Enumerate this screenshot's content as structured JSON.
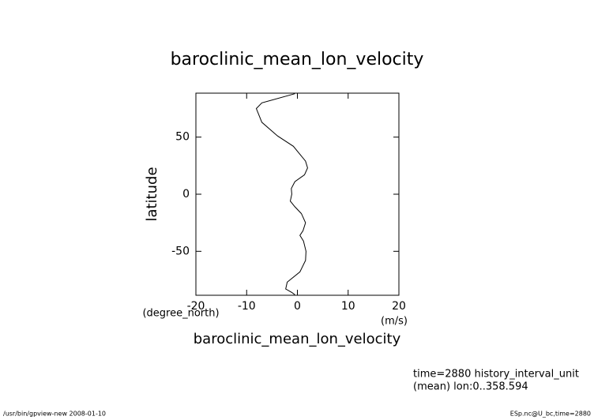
{
  "chart_data": {
    "type": "line",
    "title": "baroclinic_mean_lon_velocity",
    "x_label": "baroclinic_mean_lon_velocity",
    "x_units": "(m/s)",
    "y_label": "latitude",
    "y_units": "(degree_north)",
    "notes": [
      "time=2880 history_interval_unit",
      "(mean) lon:0..358.594"
    ],
    "footer_left": "/usr/bin/gpview-new  2008-01-10",
    "footer_right": "ESp.nc@U_bc,time=2880",
    "color": "#000000",
    "x": [
      -0.5,
      -7,
      -8.1,
      -7,
      -3.9,
      -0.8,
      0.5,
      1.6,
      2.0,
      1.4,
      -0.5,
      -1.2,
      -1.1,
      -1.4,
      -0.5,
      0.8,
      1.6,
      1.1,
      0.5,
      1.2,
      1.7,
      1.6,
      0.5,
      -2.0,
      -2.3,
      -1.1,
      -0.5
    ],
    "values": [
      88,
      80,
      75,
      63,
      51,
      42,
      35,
      29,
      23,
      17,
      11,
      5,
      0,
      -6,
      -11,
      -17,
      -25,
      -32,
      -36,
      -41,
      -50,
      -58,
      -68,
      -77,
      -83,
      -86,
      -88
    ],
    "xlim": [
      -20,
      20
    ],
    "xticks": [
      -20,
      -10,
      0,
      10,
      20
    ],
    "ylim": [
      -88.5,
      88.5
    ],
    "yticks": [
      -50,
      0,
      50
    ]
  }
}
